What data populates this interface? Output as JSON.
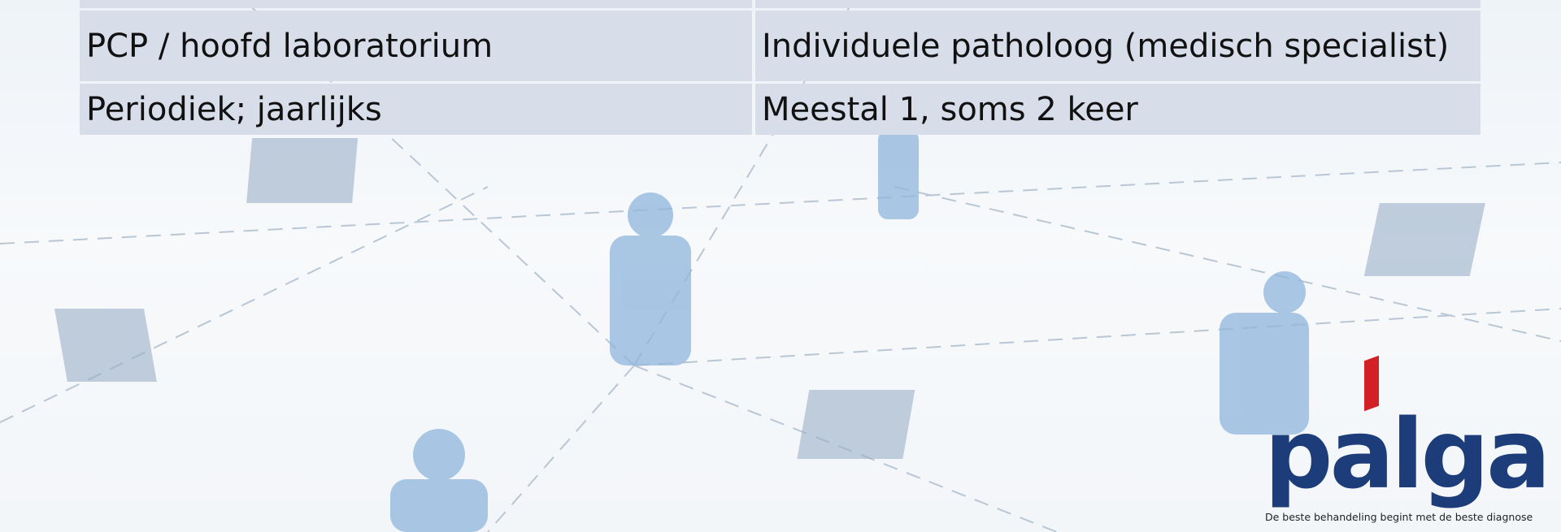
{
  "table": {
    "rows": [
      [
        "PCP / hoofd laboratorium",
        "Individuele patholoog (medisch specialist)"
      ],
      [
        "Periodiek; jaarlijks",
        "Meestal 1, soms 2 keer"
      ]
    ]
  },
  "logo": {
    "name": "palga",
    "tagline": "De beste behandeling begint met de beste diagnose"
  }
}
